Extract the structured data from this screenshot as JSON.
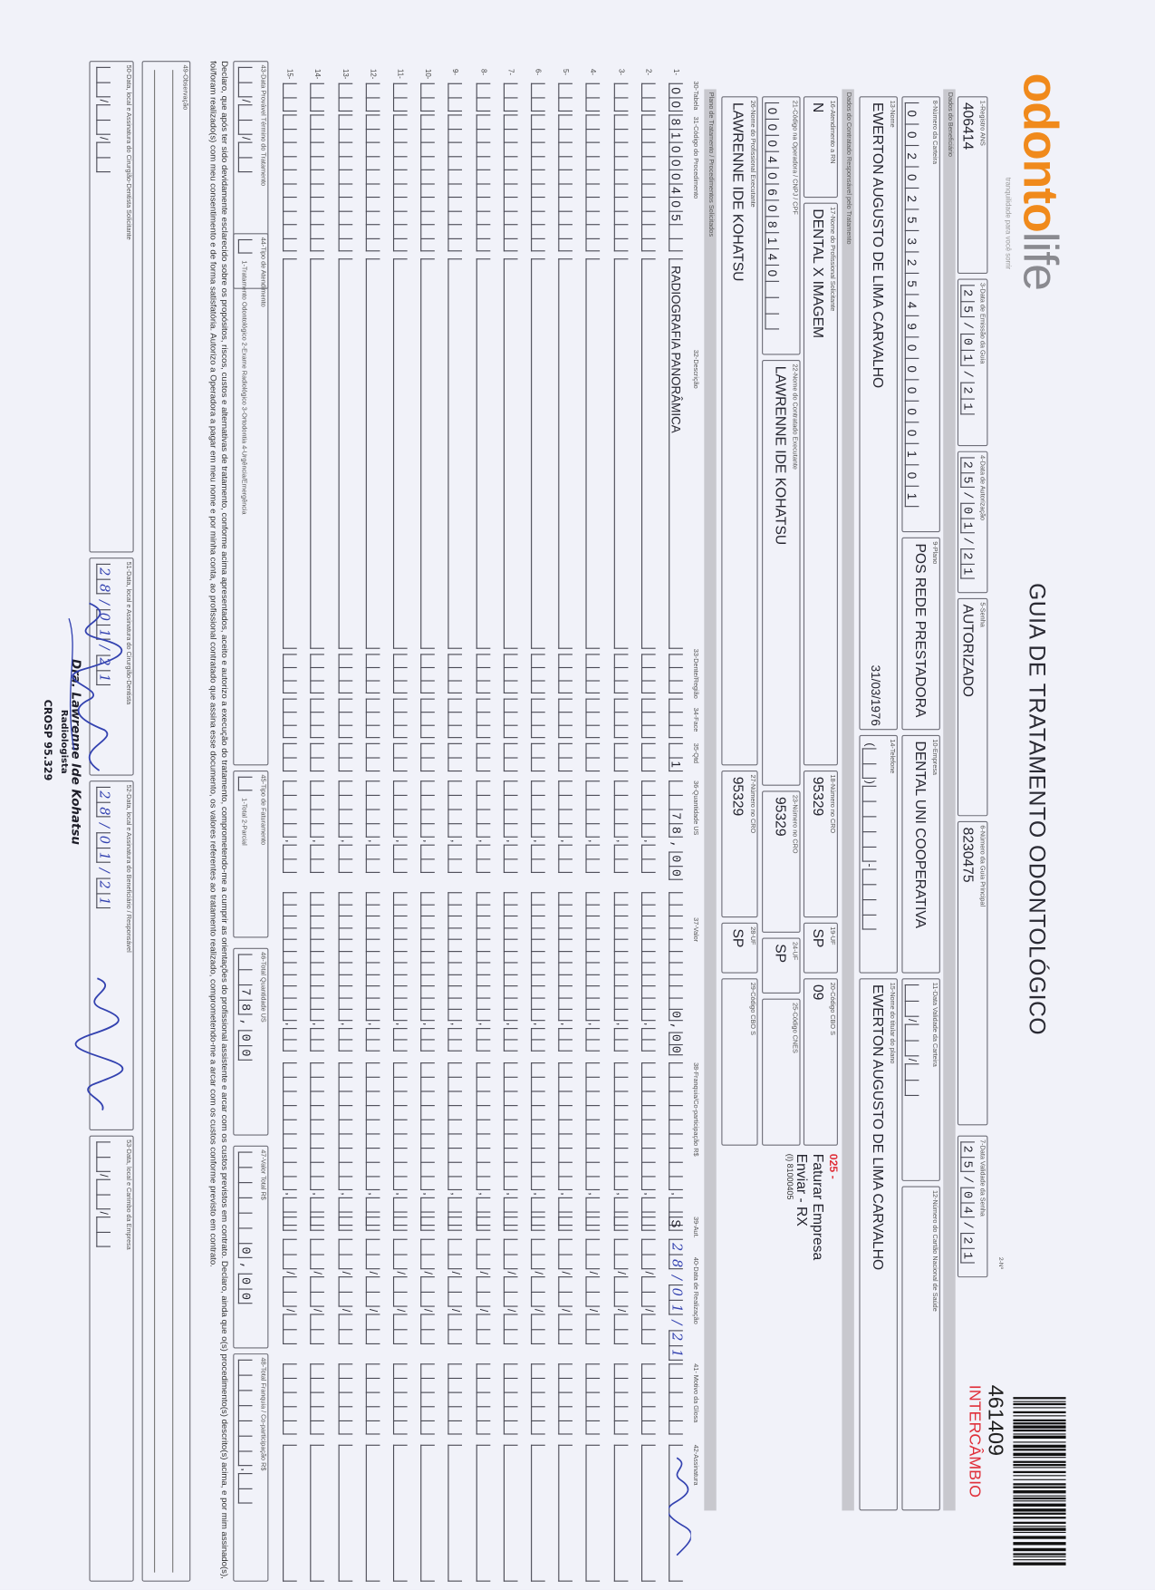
{
  "logo": {
    "brand_part1": "odonto",
    "brand_part2": "life",
    "tagline": "tranquilidade para você sorrir"
  },
  "title": "GUIA DE TRATAMENTO ODONTOLÓGICO",
  "guide_number_label": "2-Nº",
  "guide_number": "461409",
  "guide_type": "INTERCÂMBIO",
  "colors": {
    "brand_orange": "#f08a1c",
    "red": "#e0303a",
    "ink_blue": "#3342b0",
    "section_bar": "#c8c8ce"
  },
  "sections": {
    "beneficiario": "Dados do Beneficiário",
    "contratado": "Dados do Contratado Responsável pelo Tratamento",
    "plano": "Plano de Tratamento / Procedimentos Solicitados"
  },
  "fields": {
    "f1": {
      "label": "1-Registro ANS",
      "value": "406414"
    },
    "f3": {
      "label": "3-Data de Emissão da Guia",
      "value": "25/01/21"
    },
    "f4": {
      "label": "4-Data de Autorização",
      "value": "25/01/21"
    },
    "f5": {
      "label": "5-Senha",
      "value": "AUTORIZADO"
    },
    "f6": {
      "label": "6-Número da Guia Principal",
      "value": "8230475"
    },
    "f7": {
      "label": "7-Data Validade da Senha",
      "value": "25/04/21"
    },
    "f8": {
      "label": "8-Número da Carteira",
      "value": "0020253254900000101"
    },
    "f9": {
      "label": "9-Plano",
      "value": "POS REDE PRESTADORA"
    },
    "f10": {
      "label": "10-Empresa",
      "value": "DENTAL UNI  COOPERATIVA"
    },
    "f11": {
      "label": "11-Data Validade da Carteira",
      "value": ""
    },
    "f12": {
      "label": "12-Número do Cartão Nacional de Saúde",
      "value": ""
    },
    "f13": {
      "label": "13-Nome",
      "value": "EWERTON AUGUSTO DE LIMA CARVALHO",
      "birth_date": "31/03/1976"
    },
    "f14": {
      "label": "14-Telefone",
      "value": ""
    },
    "f15": {
      "label": "15-Nome do titular do plano",
      "value": "EWERTON AUGUSTO DE LIMA CARVALHO"
    },
    "f16": {
      "label": "16-Atendimento a RN",
      "value": "N"
    },
    "f17": {
      "label": "17-Nome do Profissional Solicitante",
      "value": "DENTAL X IMAGEM"
    },
    "f18": {
      "label": "18-Número no CRO",
      "value": "95329"
    },
    "f19": {
      "label": "19-UF",
      "value": "SP"
    },
    "f20": {
      "label": "20-Código CBO S",
      "value": "09"
    },
    "f21": {
      "label": "21-Código na Operadora / CNPJ / CPF",
      "value": "00040608140"
    },
    "f22": {
      "label": "22-Nome do Contratado Executante",
      "value": "LAWRENNE IDE KOHATSU"
    },
    "f23": {
      "label": "23-Número no CRO",
      "value": "95329"
    },
    "f24": {
      "label": "24-UF",
      "value": "SP"
    },
    "f25": {
      "label": "25-Código CNES",
      "value": ""
    },
    "f26": {
      "label": "26-Nome do Profissional Executante",
      "value": "LAWRENNE IDE KOHATSU"
    },
    "f27": {
      "label": "27-Número no CRO",
      "value": "95329"
    },
    "f28": {
      "label": "28-UF",
      "value": "SP"
    },
    "f29": {
      "label": "29-Código CBO S",
      "value": ""
    }
  },
  "notes": {
    "code": "025 -",
    "line1": "Faturar Empresa",
    "line2": "Enviar - RX",
    "line3": "(I) 81000405"
  },
  "table": {
    "headers": {
      "tabela": "30-Tabela",
      "codigo": "31-Código do Procedimento",
      "descricao": "32-Descrição",
      "dente": "33-Dente/Região",
      "face": "34-Face",
      "qtd": "35-Qtd",
      "qtd_us": "36-Quantidade US",
      "valor": "37-Valor",
      "franquia": "38-Franquia/Co-participação R$",
      "aut": "39-Aut.",
      "data": "40-Data de Realização",
      "glosa": "41- Motivo da Glosa",
      "assinatura": "42-Assinatura"
    },
    "row_labels": [
      "1-",
      "2-",
      "3-",
      "4-",
      "5-",
      "6-",
      "7-",
      "8-",
      "9-",
      "10-",
      "11-",
      "12-",
      "13-",
      "14-",
      "15-"
    ],
    "rows": [
      {
        "tabela": "00",
        "codigo": "81000405",
        "descricao": "RADIOGRAFIA PANORÂMICA",
        "dente": "",
        "face": "",
        "qtd": "1",
        "qtd_us": "78,00",
        "valor": "0,00",
        "franquia": "",
        "aut": "S",
        "data": "28/01/21",
        "glosa": ""
      }
    ]
  },
  "bottom": {
    "f43": {
      "label": "43-Data Provável Término do Tratamento",
      "value": ""
    },
    "f44": {
      "label": "44-Tipo de Atendimento",
      "options": "1-Tratamento Odontológico  2-Exame Radiológico  3-Ortodontia  4-Urgência/Emergência",
      "value": ""
    },
    "f45": {
      "label": "45-Tipo de Faturamento",
      "options": "1-Total  2-Parcial",
      "value": ""
    },
    "f46": {
      "label": "46-Total Quantidade US",
      "value": "78,00"
    },
    "f47": {
      "label": "47-Valor Total R$",
      "value": "0,00"
    },
    "f48": {
      "label": "48-Total Franquia / Co-participação R$",
      "value": ""
    }
  },
  "declaration": "Declaro, que após ter sido devidamente esclarecido sobre os propósitos, riscos, custos e alternativas de tratamento, conforme acima apresentados, aceito e autorizo a execução do tratamento, comprometendo-me a cumprir as orientações do profissional assistente e arcar com os custos previstos em contrato. Declaro, ainda que o(s) procedimento(s) descrito(s) acima, e por mim assinado(s), foi/foram realizado(s) com meu consentimento e de forma satisfatória. Autorizo a Operadora a pagar em meu nome e por minha conta, ao profissional contratado que assina esse documento, os valores referentes ao tratamento realizado, comprometendo-me a arcar com os custos conforme previsto em contrato.",
  "observacao": {
    "label": "49-Observação",
    "value": ""
  },
  "signatures": {
    "f50": {
      "label": "50-Data, local e Assinatura do Cirurgião-Dentista Solicitante",
      "value": ""
    },
    "f51": {
      "label": "51-Data, local e Assinatura do Cirurgião-Dentista",
      "value": "28/01/21"
    },
    "f52": {
      "label": "52-Data, local e Assinatura do Beneficiário / Responsável",
      "value": "28/01/21"
    },
    "f53": {
      "label": "53-Data, local e Carimbo da Empresa",
      "value": ""
    }
  },
  "stamp": {
    "line1": "Dra. Lawrenne Ide Kohatsu",
    "line2": "Radiologista",
    "line3": "CROSP 95.329"
  }
}
